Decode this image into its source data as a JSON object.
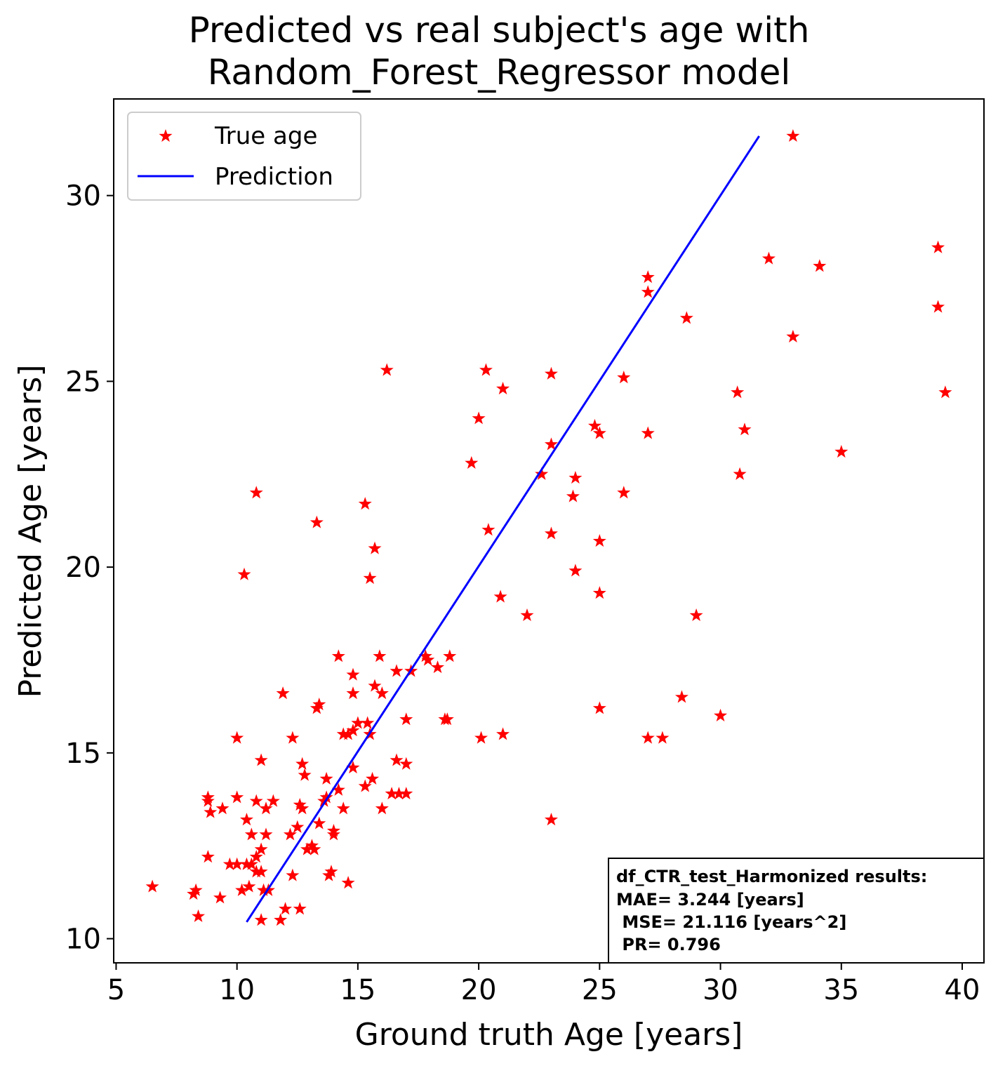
{
  "chart_data": {
    "type": "scatter",
    "title_lines": [
      "Predicted vs real subject's age with",
      "Random_Forest_Regressor model"
    ],
    "xlabel": "Ground truth Age [years]",
    "ylabel": "Predicted Age [years]",
    "xlim": [
      4.9,
      40.9
    ],
    "ylim": [
      9.35,
      32.6
    ],
    "xticks": [
      5,
      10,
      15,
      20,
      25,
      30,
      35,
      40
    ],
    "yticks": [
      10,
      15,
      20,
      25,
      30
    ],
    "grid": false,
    "legend": {
      "placement": "top-left",
      "entries": [
        {
          "label": "True age",
          "color": "#ff0000",
          "marker": "star"
        },
        {
          "label": "Prediction",
          "color": "#0000ff",
          "marker": "line"
        }
      ]
    },
    "series": [
      {
        "name": "True age",
        "color": "#ff0000",
        "points": [
          [
            6.5,
            11.4
          ],
          [
            8.2,
            11.2
          ],
          [
            8.3,
            11.3
          ],
          [
            8.4,
            10.6
          ],
          [
            9.3,
            11.1
          ],
          [
            10.2,
            11.3
          ],
          [
            10.5,
            11.4
          ],
          [
            11.0,
            10.5
          ],
          [
            11.1,
            11.3
          ],
          [
            11.3,
            11.3
          ],
          [
            11.8,
            10.5
          ],
          [
            12.0,
            10.8
          ],
          [
            12.6,
            10.8
          ],
          [
            12.3,
            11.7
          ],
          [
            10.8,
            11.8
          ],
          [
            11.0,
            11.8
          ],
          [
            13.8,
            11.7
          ],
          [
            13.9,
            11.8
          ],
          [
            14.6,
            11.5
          ],
          [
            8.8,
            12.2
          ],
          [
            9.7,
            12.0
          ],
          [
            10.0,
            12.0
          ],
          [
            10.4,
            12.0
          ],
          [
            10.6,
            12.0
          ],
          [
            10.8,
            12.2
          ],
          [
            11.0,
            12.4
          ],
          [
            12.9,
            12.4
          ],
          [
            13.2,
            12.4
          ],
          [
            13.1,
            12.5
          ],
          [
            10.6,
            12.8
          ],
          [
            11.2,
            12.8
          ],
          [
            12.2,
            12.8
          ],
          [
            12.5,
            13.0
          ],
          [
            14.0,
            12.8
          ],
          [
            14.0,
            12.9
          ],
          [
            13.4,
            13.1
          ],
          [
            8.8,
            13.8
          ],
          [
            8.8,
            13.7
          ],
          [
            8.9,
            13.4
          ],
          [
            9.4,
            13.5
          ],
          [
            10.0,
            13.8
          ],
          [
            10.4,
            13.2
          ],
          [
            10.8,
            13.7
          ],
          [
            11.2,
            13.5
          ],
          [
            11.5,
            13.7
          ],
          [
            12.6,
            13.6
          ],
          [
            12.7,
            13.5
          ],
          [
            13.6,
            13.7
          ],
          [
            13.7,
            13.8
          ],
          [
            14.4,
            13.5
          ],
          [
            14.2,
            14.0
          ],
          [
            16.0,
            13.5
          ],
          [
            16.4,
            13.9
          ],
          [
            16.7,
            13.9
          ],
          [
            17.0,
            13.9
          ],
          [
            13.7,
            14.3
          ],
          [
            15.3,
            14.1
          ],
          [
            15.6,
            14.3
          ],
          [
            14.8,
            14.6
          ],
          [
            12.8,
            14.4
          ],
          [
            12.7,
            14.7
          ],
          [
            11.0,
            14.8
          ],
          [
            10.0,
            15.4
          ],
          [
            12.3,
            15.4
          ],
          [
            14.4,
            15.5
          ],
          [
            14.6,
            15.5
          ],
          [
            14.8,
            15.6
          ],
          [
            15.5,
            15.5
          ],
          [
            15.4,
            15.8
          ],
          [
            15.0,
            15.8
          ],
          [
            16.6,
            14.8
          ],
          [
            17.0,
            14.7
          ],
          [
            17.0,
            15.9
          ],
          [
            18.6,
            15.9
          ],
          [
            18.7,
            15.9
          ],
          [
            13.3,
            16.2
          ],
          [
            13.4,
            16.3
          ],
          [
            11.9,
            16.6
          ],
          [
            14.8,
            16.6
          ],
          [
            16.0,
            16.6
          ],
          [
            15.7,
            16.8
          ],
          [
            14.8,
            17.1
          ],
          [
            16.6,
            17.2
          ],
          [
            17.2,
            17.2
          ],
          [
            17.8,
            17.6
          ],
          [
            17.9,
            17.5
          ],
          [
            18.3,
            17.3
          ],
          [
            18.8,
            17.6
          ],
          [
            15.9,
            17.6
          ],
          [
            14.2,
            17.6
          ],
          [
            10.3,
            19.8
          ],
          [
            10.8,
            22.0
          ],
          [
            13.3,
            21.2
          ],
          [
            15.3,
            21.7
          ],
          [
            15.7,
            20.5
          ],
          [
            15.5,
            19.7
          ],
          [
            16.2,
            25.3
          ],
          [
            19.7,
            22.8
          ],
          [
            20.0,
            24.0
          ],
          [
            20.3,
            25.3
          ],
          [
            21.0,
            24.8
          ],
          [
            20.4,
            21.0
          ],
          [
            20.9,
            19.2
          ],
          [
            22.0,
            18.7
          ],
          [
            20.1,
            15.4
          ],
          [
            21.0,
            15.5
          ],
          [
            22.6,
            22.5
          ],
          [
            23.0,
            23.3
          ],
          [
            23.0,
            25.2
          ],
          [
            23.0,
            20.9
          ],
          [
            24.0,
            22.4
          ],
          [
            23.9,
            21.9
          ],
          [
            24.0,
            19.9
          ],
          [
            24.8,
            23.8
          ],
          [
            25.0,
            23.6
          ],
          [
            25.0,
            20.7
          ],
          [
            25.0,
            19.3
          ],
          [
            25.0,
            16.2
          ],
          [
            23.0,
            13.2
          ],
          [
            26.0,
            25.1
          ],
          [
            26.0,
            22.0
          ],
          [
            27.0,
            27.8
          ],
          [
            27.0,
            27.4
          ],
          [
            27.0,
            23.6
          ],
          [
            28.6,
            26.7
          ],
          [
            29.0,
            18.7
          ],
          [
            28.4,
            16.5
          ],
          [
            27.0,
            15.4
          ],
          [
            27.6,
            15.4
          ],
          [
            30.0,
            16.0
          ],
          [
            30.7,
            24.7
          ],
          [
            30.8,
            22.5
          ],
          [
            31.0,
            23.7
          ],
          [
            32.0,
            28.3
          ],
          [
            33.0,
            31.6
          ],
          [
            33.0,
            26.2
          ],
          [
            34.1,
            28.1
          ],
          [
            35.0,
            23.1
          ],
          [
            39.0,
            28.6
          ],
          [
            39.0,
            27.0
          ],
          [
            39.3,
            24.7
          ]
        ]
      },
      {
        "name": "Prediction",
        "color": "#0000ff",
        "line": [
          [
            10.4,
            10.45
          ],
          [
            31.6,
            31.6
          ]
        ]
      }
    ],
    "annotation": {
      "lines": [
        "df_CTR_test_Harmonized results:",
        "MAE= 3.244 [years]",
        " MSE= 21.116 [years^2]",
        " PR= 0.796"
      ]
    }
  }
}
